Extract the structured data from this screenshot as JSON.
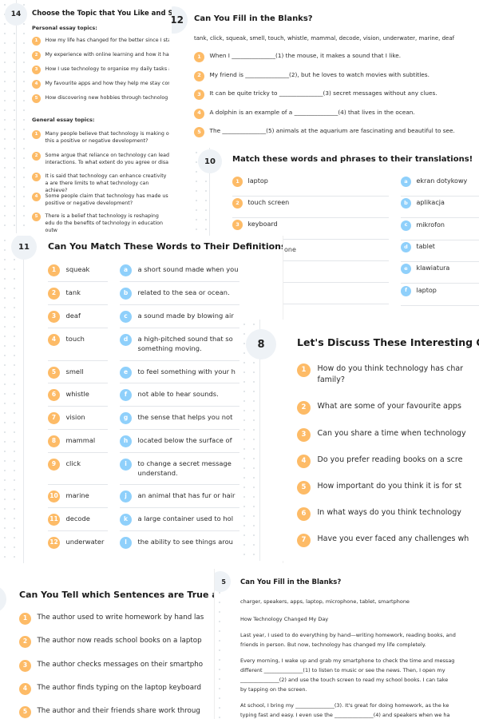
{
  "colors": {
    "number_badge": "#fdbb67",
    "letter_badge": "#8fd0fb",
    "section_badge": "#eef2f6"
  },
  "card14": {
    "number": "14",
    "title": "Choose the Topic that You Like and Share",
    "personal_heading": "Personal essay topics:",
    "personal": [
      "How my life has changed for the better since I sta",
      "My experience with online learning and how it ha",
      "How I use technology to organise my daily tasks a",
      "My favourite apps and how they help me stay con",
      "How discovering new hobbies through technolog"
    ],
    "general_heading": "General essay topics:",
    "general": [
      "Many people believe that technology is making o this a positive or negative development?",
      "Some argue that reliance on technology can lead interactions. To what extent do you agree or disa",
      "It is said that technology can enhance creativity a are there limits to what technology can achieve?",
      "Some people claim that technology has made us positive or negative development?",
      "There is a belief that technology is reshaping edu do the benefits of technology in education outw"
    ]
  },
  "card12": {
    "number": "12",
    "title": "Can You Fill in the Blanks?",
    "word_bank": "tank, click, squeak, smell, touch, whistle, mammal, decode, vision, underwater, marine, deaf",
    "items": [
      "When I _______________(1) the mouse, it makes a sound that I like.",
      "My friend is _______________(2), but he loves to watch movies with subtitles.",
      "It can be quite tricky to _______________(3) secret messages without any clues.",
      "A dolphin is an example of a _______________(4) that lives in the ocean.",
      "The _______________(5) animals at the aquarium are fascinating and beautiful to see."
    ]
  },
  "card10": {
    "number": "10",
    "title": "Match these words and phrases to their translations!",
    "words": [
      "laptop",
      "touch screen",
      "keyboard"
    ],
    "extra": "one",
    "translations": [
      {
        "l": "a",
        "t": "ekran dotykowy"
      },
      {
        "l": "b",
        "t": "aplikacja"
      },
      {
        "l": "c",
        "t": "mikrofon"
      },
      {
        "l": "d",
        "t": "tablet"
      },
      {
        "l": "e",
        "t": "klawiatura"
      },
      {
        "l": "f",
        "t": "laptop"
      }
    ]
  },
  "card11": {
    "number": "11",
    "title": "Can You Match These Words to Their Definitions?",
    "words": [
      "squeak",
      "tank",
      "deaf",
      "touch",
      "smell",
      "whistle",
      "vision",
      "mammal",
      "click",
      "marine",
      "decode",
      "underwater"
    ],
    "definitions": [
      {
        "l": "a",
        "t": "a short sound made when you press som"
      },
      {
        "l": "b",
        "t": "related to the sea or ocean."
      },
      {
        "l": "c",
        "t": "a sound made by blowing air"
      },
      {
        "l": "d",
        "t": "a high-pitched sound that so something moving."
      },
      {
        "l": "e",
        "t": "to feel something with your h"
      },
      {
        "l": "f",
        "t": "not able to hear sounds."
      },
      {
        "l": "g",
        "t": "the sense that helps you not"
      },
      {
        "l": "h",
        "t": "located below the surface of"
      },
      {
        "l": "i",
        "t": "to change a secret message understand."
      },
      {
        "l": "j",
        "t": "an animal that has fur or hair"
      },
      {
        "l": "k",
        "t": "a large container used to hol"
      },
      {
        "l": "l",
        "t": "the ability to see things arou"
      }
    ]
  },
  "card8": {
    "number": "8",
    "title": "Let's Discuss These Interesting Q",
    "items": [
      "How do you think technology has char family?",
      "What are some of your favourite apps",
      "Can you share a time when technology",
      "Do you prefer reading books on a scre",
      "How important do you think it is for st",
      "In what ways do you think technology",
      "Have you ever faced any challenges wh"
    ]
  },
  "card_tf": {
    "title": "Can You Tell which Sentences are True a",
    "items": [
      "The author used to write homework by hand las",
      "The author now reads school books on a laptop",
      "The author checks messages on their smartpho",
      "The author finds typing on the laptop keyboard",
      "The author and their friends share work throug"
    ]
  },
  "card5": {
    "number": "5",
    "title": "Can You Fill in the Blanks?",
    "word_bank": "charger, speakers, apps, laptop, microphone, tablet, smartphone",
    "heading": "How Technology Changed My Day",
    "paragraphs": [
      [
        "Last year, I used to do everything by hand—writing homework, reading books, and",
        "friends in person. But now, technology has changed my life completely."
      ],
      [
        "Every morning, I wake up and grab my smartphone to check the time and messag",
        "different _______________(1) to listen to music or see the news. Then, I open my",
        "_______________(2) and use the touch screen to read my school books. I can take",
        "by tapping on the screen."
      ],
      [
        "At school, I bring my _______________(3). It's great for doing homework, as the ke",
        "typing fast and easy. I even use the _______________(4) and speakers when we ha"
      ]
    ]
  }
}
